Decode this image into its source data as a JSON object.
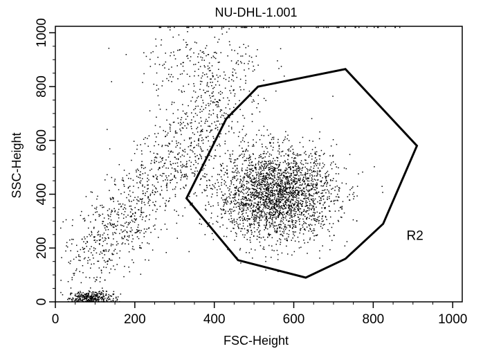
{
  "chart_data": {
    "type": "scatter",
    "title": "NU-DHL-1.001",
    "xlabel": "FSC-Height",
    "ylabel": "SSC-Height",
    "xlim": [
      0,
      1024
    ],
    "ylim": [
      0,
      1024
    ],
    "x_ticks": [
      0,
      200,
      400,
      600,
      800,
      1000
    ],
    "y_ticks": [
      0,
      200,
      400,
      600,
      800,
      1000
    ],
    "grid": false,
    "gate": {
      "name": "R2",
      "vertices": [
        [
          330,
          385
        ],
        [
          430,
          680
        ],
        [
          510,
          800
        ],
        [
          730,
          865
        ],
        [
          910,
          580
        ],
        [
          825,
          290
        ],
        [
          730,
          160
        ],
        [
          630,
          90
        ],
        [
          460,
          155
        ]
      ]
    },
    "populations": [
      {
        "name": "debris",
        "center": [
          90,
          15
        ],
        "spread": [
          28,
          12
        ],
        "count": 320
      },
      {
        "name": "main",
        "center": [
          555,
          400
        ],
        "spread": [
          75,
          85
        ],
        "count": 2600
      },
      {
        "name": "diagonal",
        "from": [
          70,
          130
        ],
        "to": [
          430,
          760
        ],
        "count": 1100
      },
      {
        "name": "upper",
        "center": [
          370,
          880
        ],
        "spread": [
          80,
          70
        ],
        "count": 220
      }
    ]
  },
  "colors": {
    "background": "#ffffff",
    "points": "#000000",
    "gate": "#000000",
    "axes": "#000000"
  }
}
